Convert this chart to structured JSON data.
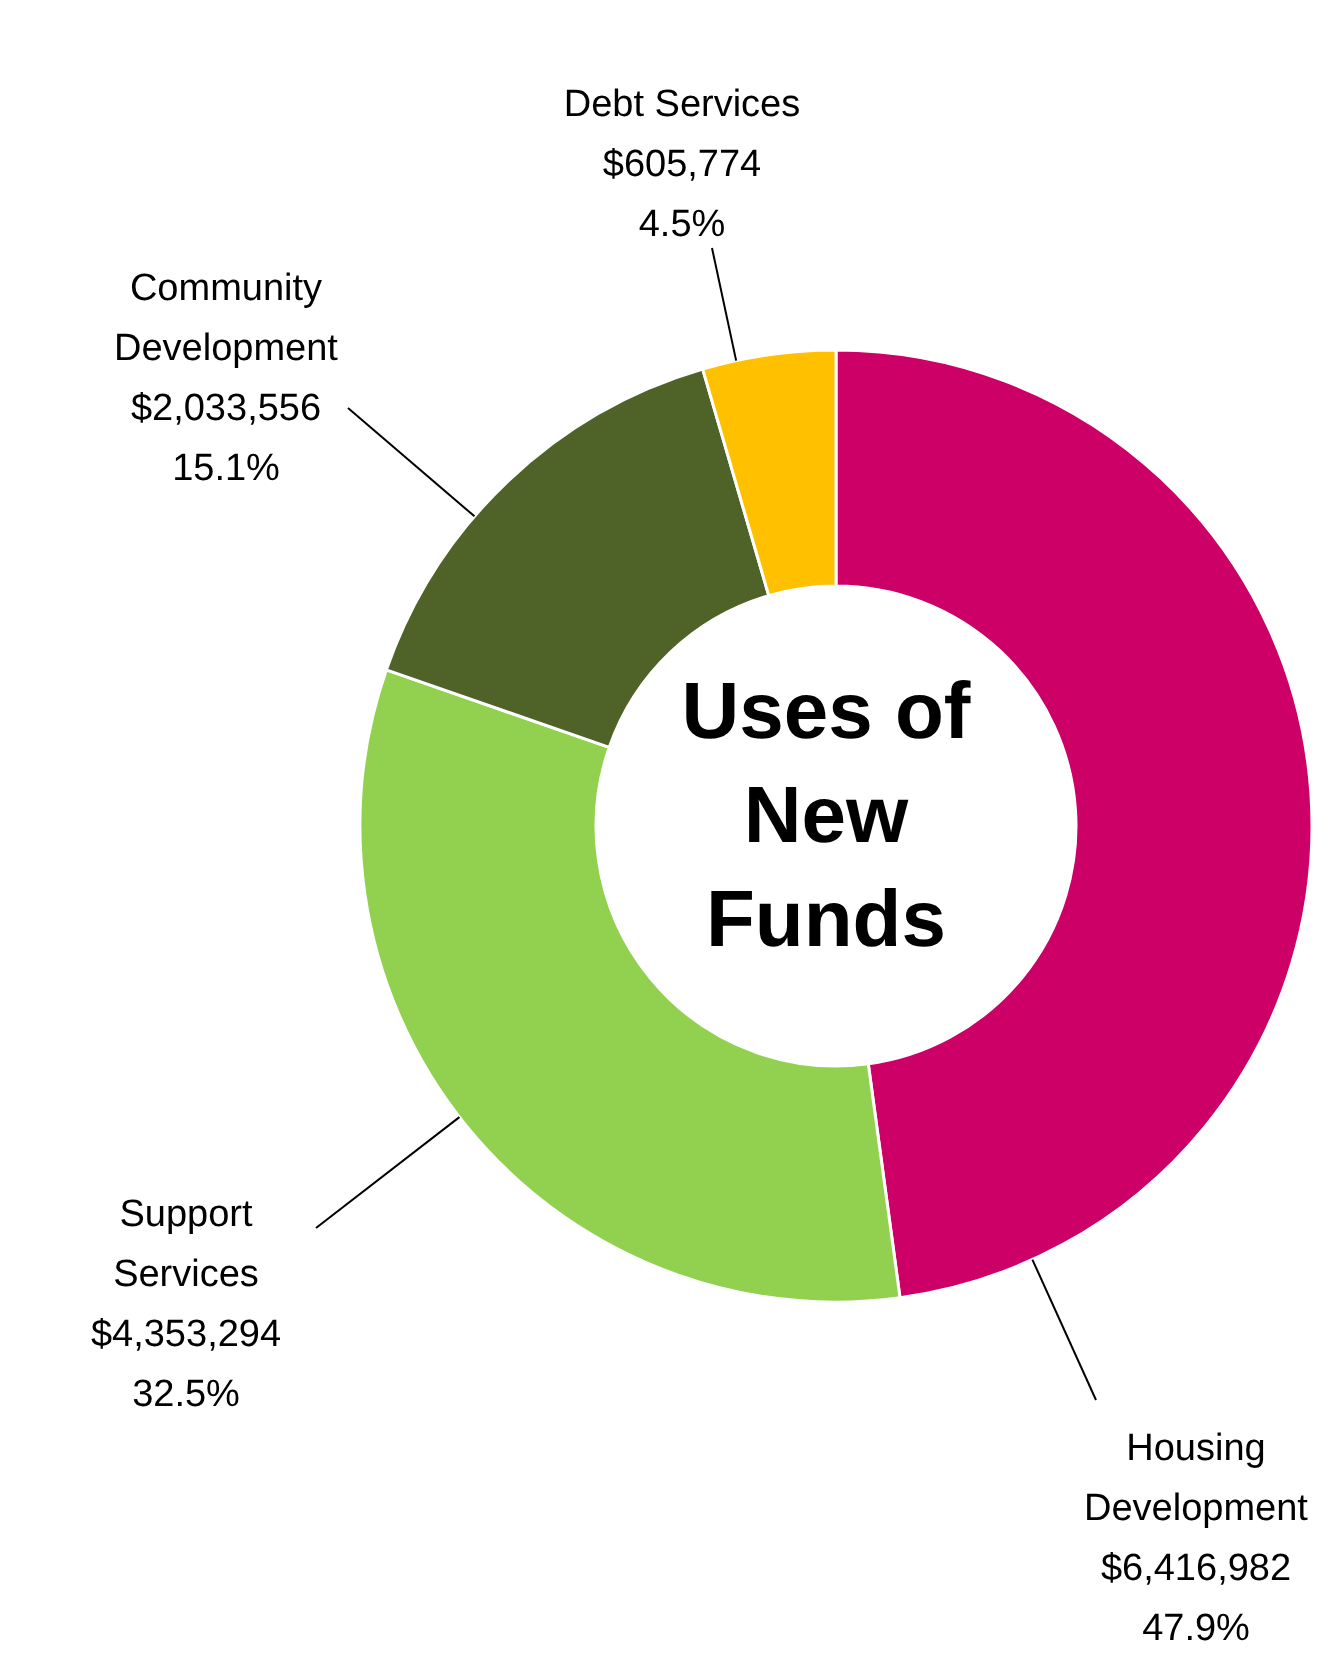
{
  "chart_data": {
    "type": "donut",
    "title": "Uses of New Funds",
    "categories": [
      "Housing Development",
      "Support Services",
      "Community Development",
      "Debt Services"
    ],
    "values": [
      6416982,
      4353294,
      2033556,
      605774
    ],
    "colors": [
      "#cc0066",
      "#92d050",
      "#4f6228",
      "#ffc000"
    ],
    "value_labels": [
      "$6,416,982\n47.9%",
      "$4,353,294\n32.5%",
      "$2,033,556\n15.1%",
      "$605,774\n4.5%"
    ]
  }
}
